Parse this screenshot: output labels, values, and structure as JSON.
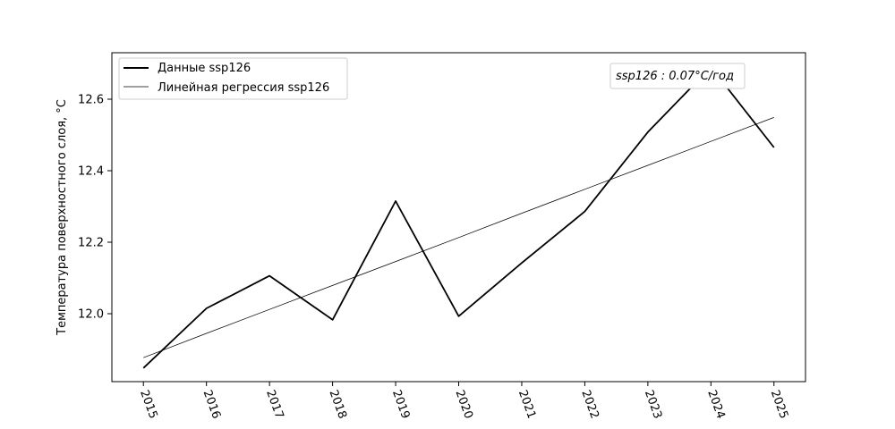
{
  "chart_data": {
    "type": "line",
    "title": "",
    "xlabel": "",
    "ylabel": "Температура поверхностного слоя, °C",
    "x": [
      2015,
      2016,
      2017,
      2018,
      2019,
      2020,
      2021,
      2022,
      2023,
      2024,
      2025
    ],
    "x_tick_labels": [
      "2015",
      "2016",
      "2017",
      "2018",
      "2019",
      "2020",
      "2021",
      "2022",
      "2023",
      "2024",
      "2025"
    ],
    "y_ticks": [
      12.0,
      12.2,
      12.4,
      12.6
    ],
    "y_tick_labels": [
      "12.0",
      "12.2",
      "12.4",
      "12.6"
    ],
    "xlim": [
      2014.5,
      2025.5
    ],
    "ylim": [
      11.81,
      12.73
    ],
    "series": [
      {
        "name": "Данные ssp126",
        "values": [
          11.848,
          12.015,
          12.106,
          11.983,
          12.315,
          11.993,
          12.142,
          12.286,
          12.508,
          12.69,
          12.465
        ],
        "color": "#000000",
        "style": "thick"
      },
      {
        "name": "Линейная регрессия ssp126",
        "values": [
          11.877,
          11.945,
          12.012,
          12.079,
          12.146,
          12.213,
          12.281,
          12.348,
          12.415,
          12.482,
          12.549
        ],
        "color": "#000000",
        "style": "thin"
      }
    ],
    "annotation": "ssp126 : 0.07°C/год",
    "legend_position": "top-left",
    "grid": false
  }
}
